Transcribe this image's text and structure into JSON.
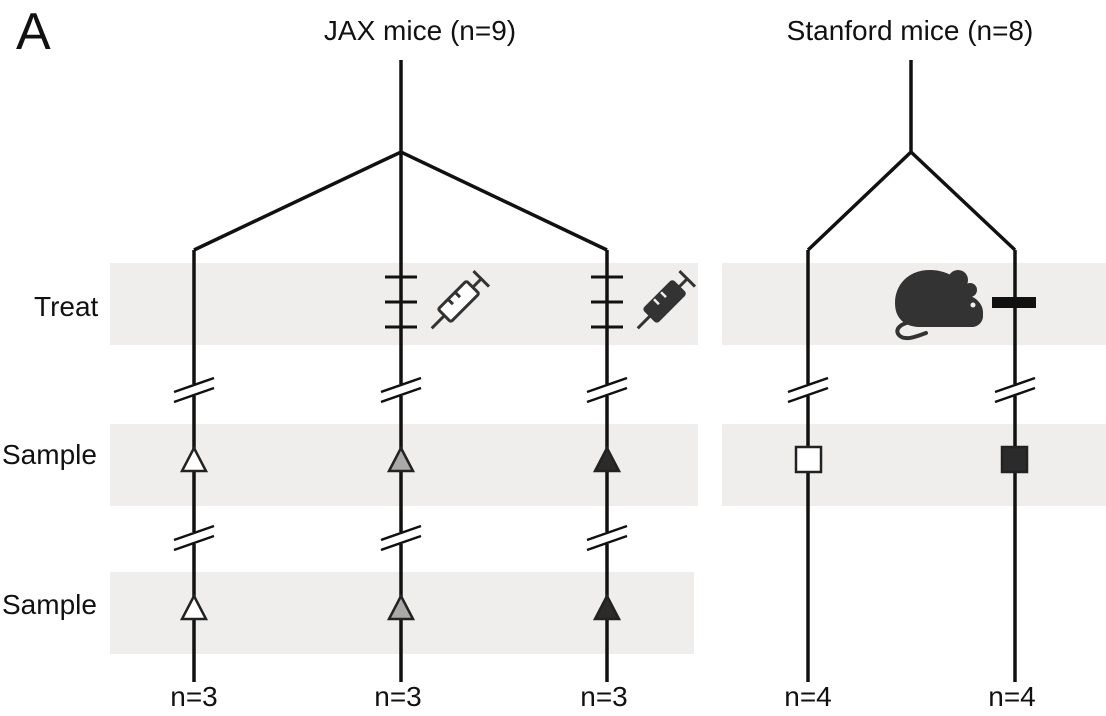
{
  "panel_letter": "A",
  "groups": {
    "jax": {
      "title": "JAX mice (n=9)",
      "counts": [
        "n=3",
        "n=3",
        "n=3"
      ],
      "sample_markers": [
        "open-triangle",
        "grey-triangle",
        "black-triangle"
      ]
    },
    "stanford": {
      "title": "Stanford mice (n=8)",
      "counts": [
        "n=4",
        "n=4"
      ],
      "sample_markers": [
        "open-square",
        "black-square"
      ]
    }
  },
  "rows": {
    "treat": "Treat",
    "sample_1": "Sample",
    "sample_2": "Sample"
  },
  "icons": {
    "jax_treat": [
      "syringe-outline-icon",
      "syringe-filled-icon"
    ],
    "stanford_treat": [
      "mouse-icon"
    ]
  },
  "colors": {
    "band": "#efeeed",
    "line": "#111111",
    "marker_grey": "#a9a9a9",
    "marker_black": "#2b2b2b",
    "icon_dark": "#333333"
  }
}
